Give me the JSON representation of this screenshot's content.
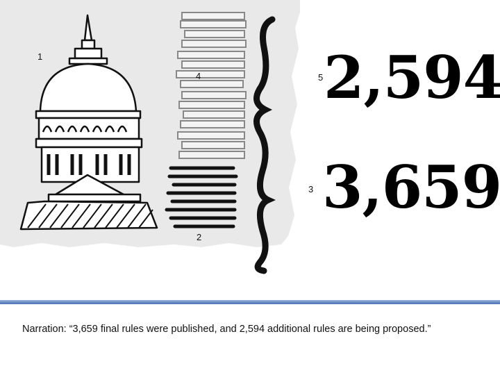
{
  "slide": {
    "markers": {
      "m1": "1",
      "m2": "2",
      "m3": "3",
      "m4": "4",
      "m5": "5"
    },
    "proposed_count": "2,594",
    "final_count": "3,659"
  },
  "notes": {
    "text": "Narration: “3,659 final rules were published, and 2,594 additional rules are being proposed.”"
  },
  "colors": {
    "divider": "#6b8fc7",
    "sketch_bg": "#e9e9e9"
  }
}
